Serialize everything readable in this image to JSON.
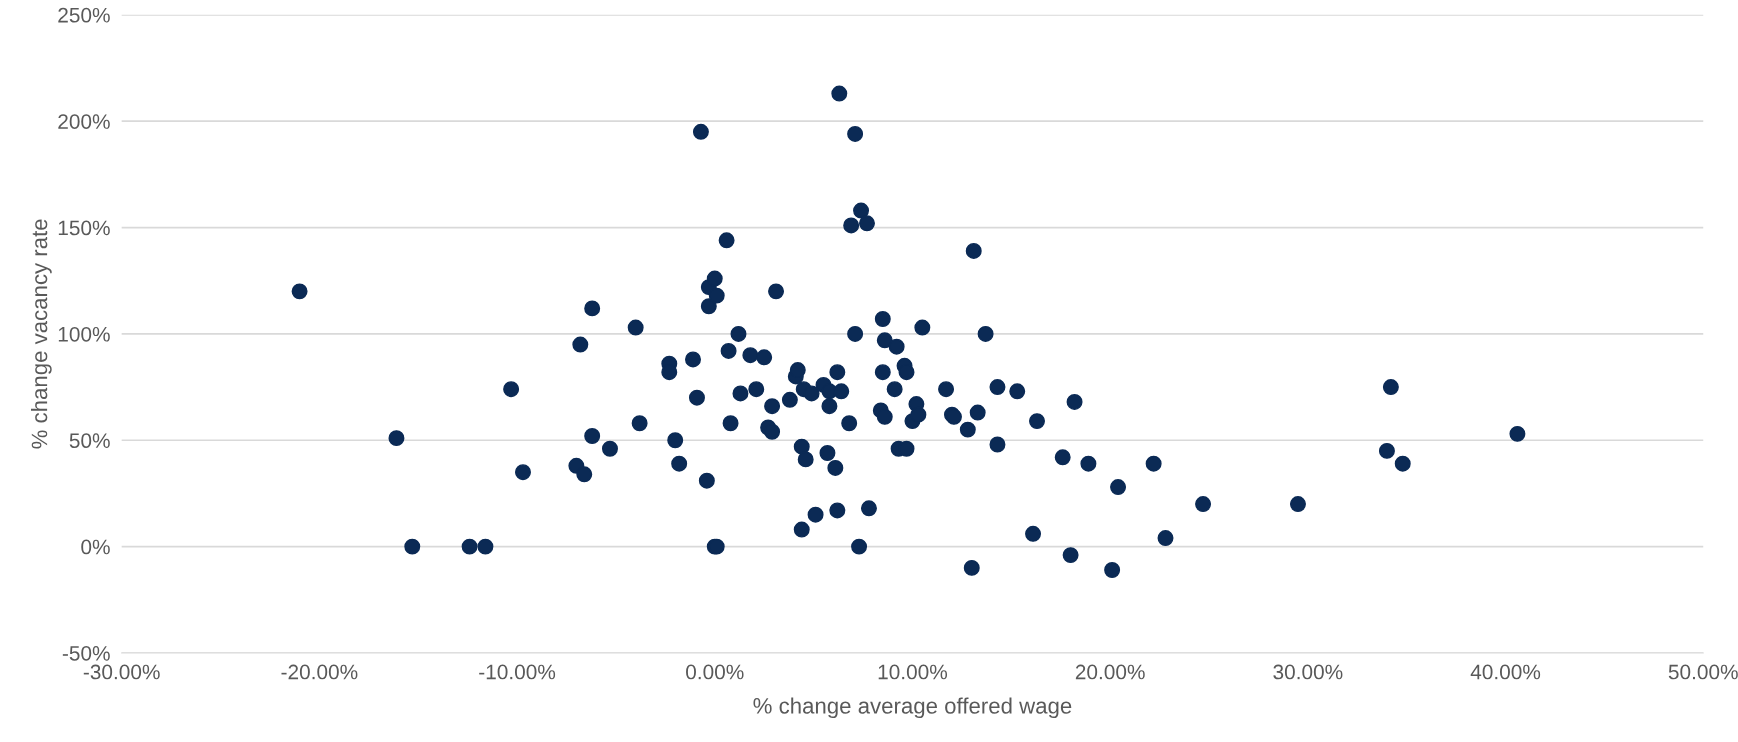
{
  "chart_data": {
    "type": "scatter",
    "xlabel": "% change average offered wage",
    "ylabel": "% change vacancy rate",
    "xlim": [
      -30,
      50
    ],
    "xticks": [
      {
        "value": -30,
        "label": "-30.00%"
      },
      {
        "value": -20,
        "label": "-20.00%"
      },
      {
        "value": -10,
        "label": "-10.00%"
      },
      {
        "value": 0,
        "label": "0.00%"
      },
      {
        "value": 10,
        "label": "10.00%"
      },
      {
        "value": 20,
        "label": "20.00%"
      },
      {
        "value": 30,
        "label": "30.00%"
      },
      {
        "value": 40,
        "label": "40.00%"
      },
      {
        "value": 50,
        "label": "50.00%"
      }
    ],
    "ylim": [
      -50,
      250
    ],
    "yticks": [
      {
        "value": -50,
        "label": "-50%"
      },
      {
        "value": 0,
        "label": "0%"
      },
      {
        "value": 50,
        "label": "50%"
      },
      {
        "value": 100,
        "label": "100%"
      },
      {
        "value": 150,
        "label": "150%"
      },
      {
        "value": 200,
        "label": "200%"
      },
      {
        "value": 250,
        "label": "250%"
      }
    ],
    "grid": "y",
    "marker": "circle",
    "legend": false,
    "series": [
      {
        "color": "#0b2a55",
        "x": [
          -21,
          -16.1,
          -15.3,
          -12.4,
          -11.6,
          -10.3,
          -9.7,
          -7.0,
          -6.8,
          -6.6,
          -6.2,
          -6.2,
          -5.3,
          -4.0,
          -3.8,
          -2.3,
          -2.3,
          -2.0,
          -1.8,
          -1.1,
          -0.9,
          -0.7,
          -0.4,
          -0.3,
          -0.3,
          0,
          0.1,
          0,
          0.1,
          0.6,
          0.7,
          0.8,
          1.2,
          1.3,
          1.8,
          2.1,
          2.5,
          2.7,
          2.9,
          2.9,
          3.1,
          3.8,
          4.1,
          4.2,
          4.4,
          4.4,
          4.5,
          4.6,
          4.9,
          5.1,
          5.5,
          5.7,
          5.8,
          5.8,
          6.1,
          6.2,
          6.2,
          6.3,
          6.4,
          6.8,
          6.9,
          7.1,
          7.1,
          7.3,
          7.4,
          7.7,
          7.8,
          8.4,
          8.5,
          8.5,
          8.6,
          8.6,
          9.1,
          9.2,
          9.3,
          9.6,
          9.7,
          9.7,
          10.0,
          10.2,
          10.3,
          10.5,
          11.7,
          12.0,
          12.1,
          12.8,
          13.0,
          13.1,
          13.3,
          13.7,
          14.3,
          14.3,
          15.3,
          16.1,
          16.3,
          17.6,
          18.0,
          18.2,
          18.9,
          20.1,
          20.4,
          22.2,
          22.8,
          24.7,
          29.5,
          34.0,
          34.2,
          34.8,
          40.6
        ],
        "values": [
          120,
          51,
          0,
          0,
          0,
          74,
          35,
          38,
          95,
          34,
          112,
          52,
          46,
          103,
          58,
          86,
          82,
          50,
          39,
          88,
          70,
          195,
          31,
          113,
          122,
          126,
          118,
          0,
          0,
          144,
          92,
          58,
          100,
          72,
          90,
          74,
          89,
          56,
          66,
          54,
          120,
          69,
          80,
          83,
          8,
          47,
          74,
          41,
          72,
          15,
          76,
          44,
          66,
          73,
          37,
          17,
          82,
          213,
          73,
          58,
          151,
          194,
          100,
          0,
          158,
          152,
          18,
          64,
          82,
          107,
          97,
          61,
          74,
          94,
          46,
          85,
          82,
          46,
          59,
          67,
          62,
          103,
          74,
          62,
          61,
          55,
          -10,
          139,
          63,
          100,
          48,
          75,
          73,
          6,
          59,
          42,
          -4,
          68,
          39,
          -11,
          28,
          39,
          4,
          20,
          20,
          45,
          75,
          39,
          53
        ]
      }
    ]
  }
}
